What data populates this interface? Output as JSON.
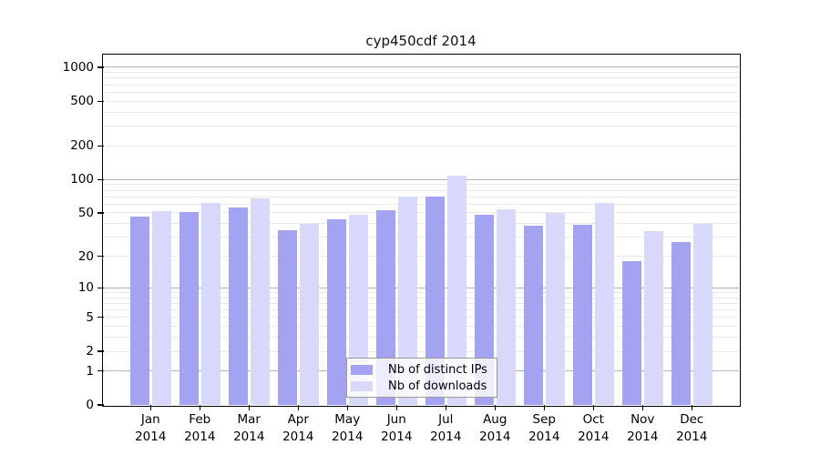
{
  "chart_data": {
    "type": "bar",
    "title": "cyp450cdf 2014",
    "year": "2014",
    "categories": [
      "Jan",
      "Feb",
      "Mar",
      "Apr",
      "May",
      "Jun",
      "Jul",
      "Aug",
      "Sep",
      "Oct",
      "Nov",
      "Dec"
    ],
    "series": [
      {
        "name": "Nb of distinct IPs",
        "color": "#a3a3f2",
        "values": [
          46,
          51,
          56,
          35,
          44,
          53,
          70,
          48,
          38,
          39,
          18,
          27
        ]
      },
      {
        "name": "Nb of downloads",
        "color": "#d8d8fa",
        "values": [
          52,
          61,
          68,
          40,
          48,
          70,
          108,
          54,
          50,
          62,
          34,
          40
        ]
      }
    ],
    "xlabel": "",
    "ylabel": "",
    "yscale": "log1p",
    "ylim": [
      0,
      1300
    ],
    "yticks": [
      1000,
      500,
      200,
      100,
      50,
      20,
      10,
      5,
      2,
      1,
      0
    ],
    "grid": {
      "on": true,
      "major": [
        1,
        10,
        100,
        1000
      ],
      "minor": [
        2,
        3,
        4,
        5,
        6,
        7,
        8,
        9,
        20,
        30,
        40,
        50,
        60,
        70,
        80,
        90,
        200,
        300,
        400,
        500,
        600,
        700,
        800,
        900
      ]
    },
    "legend_position": "bottom-center",
    "colors": {
      "axis": "#000000",
      "grid_major": "#b3b3b3",
      "grid_minor": "#e9e9e9",
      "background": "#ffffff"
    }
  }
}
